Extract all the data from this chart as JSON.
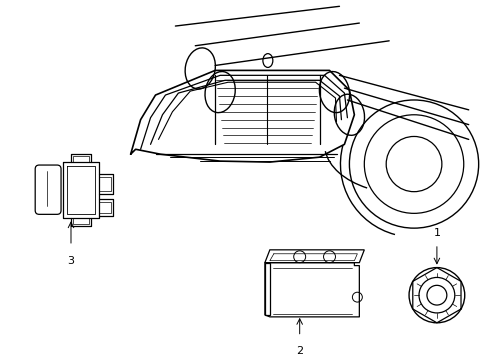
{
  "bg_color": "#ffffff",
  "line_color": "#000000",
  "fig_width": 4.89,
  "fig_height": 3.6,
  "dpi": 100,
  "label1": "1",
  "label2": "2",
  "label3": "3"
}
